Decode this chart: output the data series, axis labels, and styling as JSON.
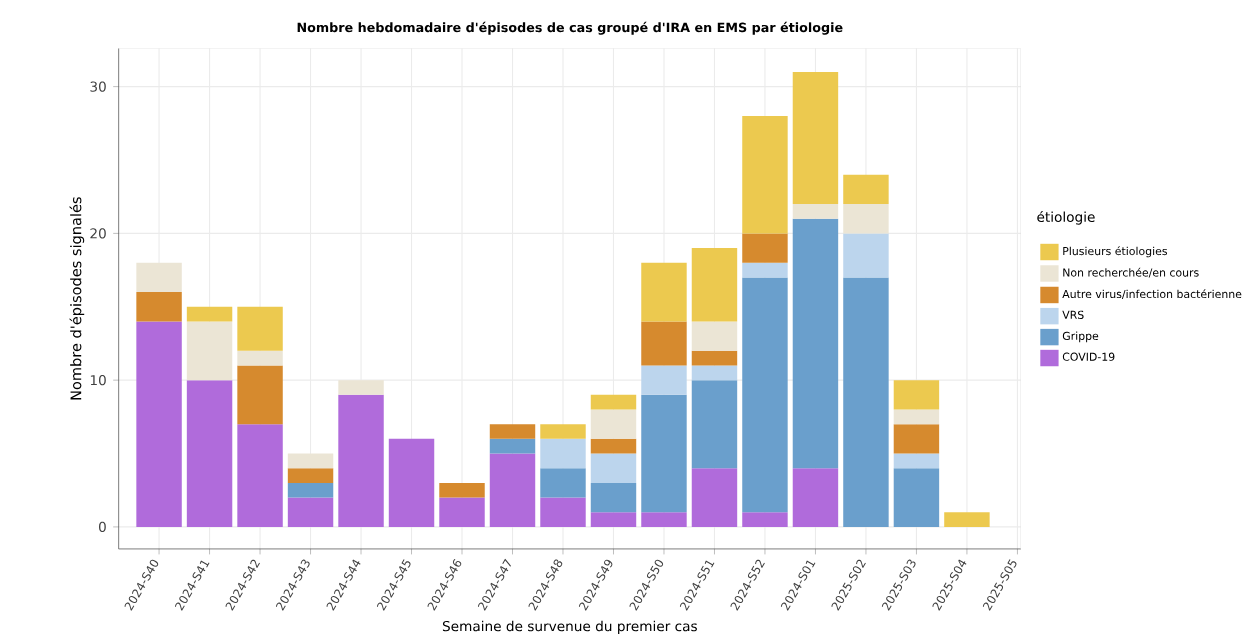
{
  "chart_data": {
    "type": "bar",
    "stacked": true,
    "title": "Nombre hebdomadaire d'épisodes de cas groupé d'IRA en EMS par étiologie",
    "xlabel": "Semaine de survenue du premier cas",
    "ylabel": "Nombre d'épisodes signalés",
    "legend_title": "étiologie",
    "legend": "right",
    "grid": true,
    "categories": [
      "2024-S40",
      "2024-S41",
      "2024-S42",
      "2024-S43",
      "2024-S44",
      "2024-S45",
      "2024-S46",
      "2024-S47",
      "2024-S48",
      "2024-S49",
      "2024-S50",
      "2024-S51",
      "2024-S52",
      "2024-S01",
      "2025-S02",
      "2025-S03",
      "2025-S04",
      "2025-S05"
    ],
    "ylim": [
      -1.5,
      32.6
    ],
    "yticks": [
      0,
      10,
      20,
      30
    ],
    "series": [
      {
        "name": "COVID-19",
        "color": "#b06bdb",
        "values": [
          14,
          10,
          7,
          2,
          9,
          6,
          2,
          5,
          2,
          1,
          1,
          4,
          1,
          4,
          0,
          0,
          0,
          0
        ]
      },
      {
        "name": "Grippe",
        "color": "#6a9fcc",
        "values": [
          0,
          0,
          0,
          1,
          0,
          0,
          0,
          1,
          2,
          2,
          8,
          6,
          16,
          17,
          17,
          4,
          0,
          0
        ]
      },
      {
        "name": "VRS",
        "color": "#bcd5ed",
        "values": [
          0,
          0,
          0,
          0,
          0,
          0,
          0,
          0,
          2,
          2,
          2,
          1,
          1,
          0,
          3,
          1,
          0,
          0
        ]
      },
      {
        "name": "Autre virus/infection bactérienne",
        "color": "#d68a2e",
        "values": [
          2,
          0,
          4,
          1,
          0,
          0,
          1,
          1,
          0,
          1,
          3,
          1,
          2,
          0,
          0,
          2,
          0,
          0
        ]
      },
      {
        "name": "Non recherchée/en cours",
        "color": "#ebe5d5",
        "values": [
          2,
          4,
          1,
          1,
          1,
          0,
          0,
          0,
          0,
          2,
          0,
          2,
          0,
          1,
          2,
          1,
          0,
          0
        ]
      },
      {
        "name": "Plusieurs étiologies",
        "color": "#ecc94f",
        "values": [
          0,
          1,
          3,
          0,
          0,
          0,
          0,
          0,
          1,
          1,
          4,
          5,
          8,
          9,
          2,
          2,
          1,
          0
        ]
      }
    ]
  }
}
